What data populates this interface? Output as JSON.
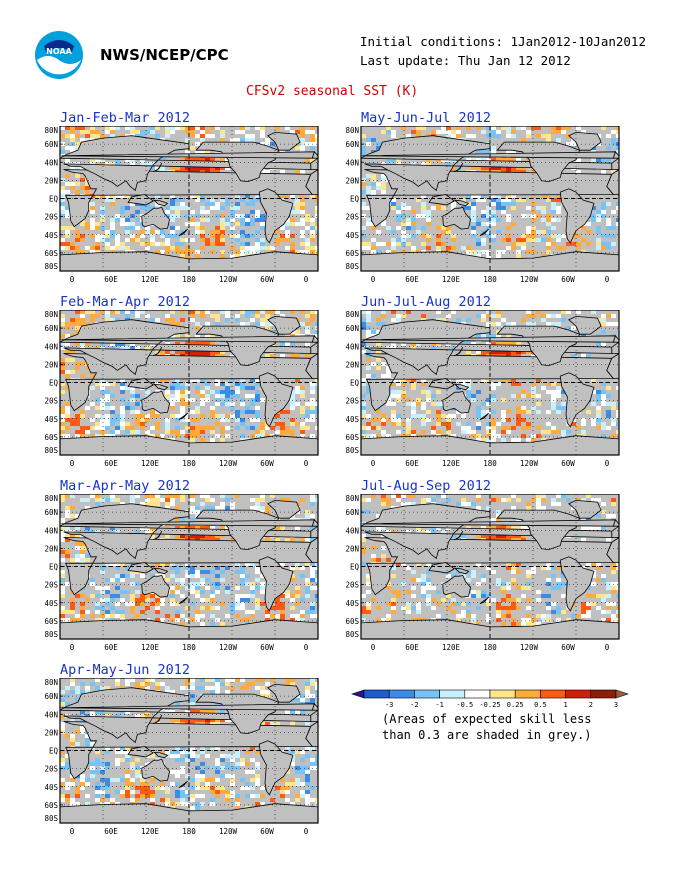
{
  "header": {
    "organization": "NWS/NCEP/CPC",
    "logo_text": "NOAA",
    "initial_conditions": "Initial conditions: 1Jan2012-10Jan2012",
    "last_update": "Last update: Thu Jan 12 2012"
  },
  "chart_data": {
    "type": "heatmap",
    "title": "CFSv2 seasonal SST (K)",
    "ytick_labels": [
      "80N",
      "60N",
      "40N",
      "20N",
      "EQ",
      "20S",
      "40S",
      "60S",
      "80S"
    ],
    "xtick_labels": [
      "0",
      "60E",
      "120E",
      "180",
      "120W",
      "60W",
      "0"
    ],
    "grid": true,
    "panels": [
      {
        "title": "Jan-Feb-Mar 2012"
      },
      {
        "title": "Feb-Mar-Apr 2012"
      },
      {
        "title": "Mar-Apr-May 2012"
      },
      {
        "title": "Apr-May-Jun 2012"
      },
      {
        "title": "May-Jun-Jul 2012"
      },
      {
        "title": "Jun-Jul-Aug 2012"
      },
      {
        "title": "Jul-Aug-Sep 2012"
      }
    ],
    "colorbar": {
      "labels": [
        "-3",
        "-2",
        "-1",
        "-0.5",
        "-0.25",
        "0.25",
        "0.5",
        "1",
        "2",
        "3"
      ],
      "colors": [
        "#2a1496",
        "#1e5ad2",
        "#3c8ce6",
        "#78c3f5",
        "#c8f0ff",
        "#ffffff",
        "#ffe68c",
        "#ffaa3c",
        "#ff5a14",
        "#d21e0a",
        "#8c1e0a",
        "#a05a3c"
      ],
      "note_line1": "(Areas of expected skill less",
      "note_line2": "than 0.3 are shaded in grey.)"
    },
    "skill_mask_color": "#c0c0c0"
  }
}
